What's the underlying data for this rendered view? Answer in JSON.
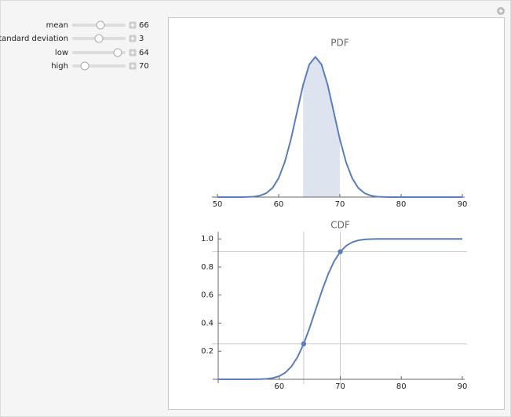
{
  "controls": [
    {
      "label": "mean",
      "value": 66
    },
    {
      "label": "standard deviation",
      "value": 3
    },
    {
      "label": "low",
      "value": 64
    },
    {
      "label": "high",
      "value": 70
    }
  ],
  "chart_data": [
    {
      "type": "line",
      "title": "PDF",
      "color": "#5b7dbb",
      "shade_color": "#dde3ef",
      "shade": [
        64,
        70
      ],
      "x": [
        50,
        51,
        52,
        53,
        54,
        55,
        56,
        57,
        58,
        59,
        60,
        61,
        62,
        63,
        64,
        65,
        66,
        67,
        68,
        69,
        70,
        71,
        72,
        73,
        74,
        75,
        76,
        77,
        78,
        79,
        80,
        81,
        82,
        83,
        84,
        85,
        86,
        87,
        88,
        89,
        90
      ],
      "values": [
        0,
        0,
        0,
        0,
        0,
        0.0002,
        0.0005,
        0.0015,
        0.0038,
        0.0087,
        0.018,
        0.0332,
        0.0547,
        0.0807,
        0.1065,
        0.1258,
        0.133,
        0.1258,
        0.1065,
        0.0807,
        0.0547,
        0.0332,
        0.018,
        0.0087,
        0.0038,
        0.0015,
        0.0005,
        0.0002,
        0,
        0,
        0,
        0,
        0,
        0,
        0,
        0,
        0,
        0,
        0,
        0,
        0
      ],
      "xlim": [
        50,
        90
      ],
      "xticks": [
        50,
        60,
        70,
        80,
        90
      ],
      "ylim": [
        0,
        0.14
      ]
    },
    {
      "type": "line",
      "title": "CDF",
      "color": "#5b7dbb",
      "x": [
        50,
        51,
        52,
        53,
        54,
        55,
        56,
        57,
        58,
        59,
        60,
        61,
        62,
        63,
        64,
        65,
        66,
        67,
        68,
        69,
        70,
        71,
        72,
        73,
        74,
        75,
        76,
        77,
        78,
        79,
        80,
        81,
        82,
        83,
        84,
        85,
        86,
        87,
        88,
        89,
        90
      ],
      "values": [
        0,
        0,
        0,
        0,
        0,
        0.0001,
        0.0004,
        0.0013,
        0.0038,
        0.0098,
        0.0228,
        0.0478,
        0.0912,
        0.1587,
        0.2525,
        0.3694,
        0.5,
        0.6306,
        0.7475,
        0.8413,
        0.9088,
        0.9522,
        0.9772,
        0.9902,
        0.9962,
        0.9987,
        0.9996,
        0.9999,
        1,
        1,
        1,
        1,
        1,
        1,
        1,
        1,
        1,
        1,
        1,
        1,
        1
      ],
      "points": {
        "x": [
          64,
          70
        ],
        "y": [
          0.2525,
          0.9088
        ]
      },
      "xlim": [
        50,
        90
      ],
      "xticks": [
        60,
        70,
        80,
        90
      ],
      "ylim": [
        0,
        1.05
      ],
      "yticks": [
        0.2,
        0.4,
        0.6,
        0.8,
        {
          "value": 1,
          "label": "1.0"
        }
      ]
    }
  ]
}
